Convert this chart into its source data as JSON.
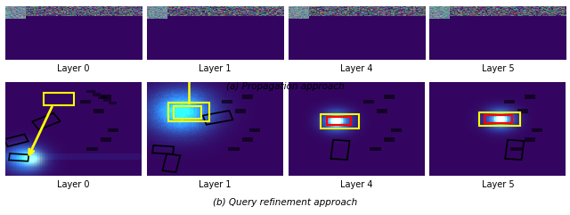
{
  "title_a": "(a) Propagation approach",
  "title_b": "(b) Query refinement approach",
  "layer_labels_a": [
    "Layer 0",
    "Layer 1",
    "Layer 4",
    "Layer 5"
  ],
  "layer_labels_b": [
    "Layer 0",
    "Layer 1",
    "Layer 4",
    "Layer 5"
  ],
  "fig_bg": "#ffffff",
  "label_fontsize": 7,
  "caption_fontsize": 7.5,
  "purple_base": [
    0.2,
    0.02,
    0.38
  ]
}
